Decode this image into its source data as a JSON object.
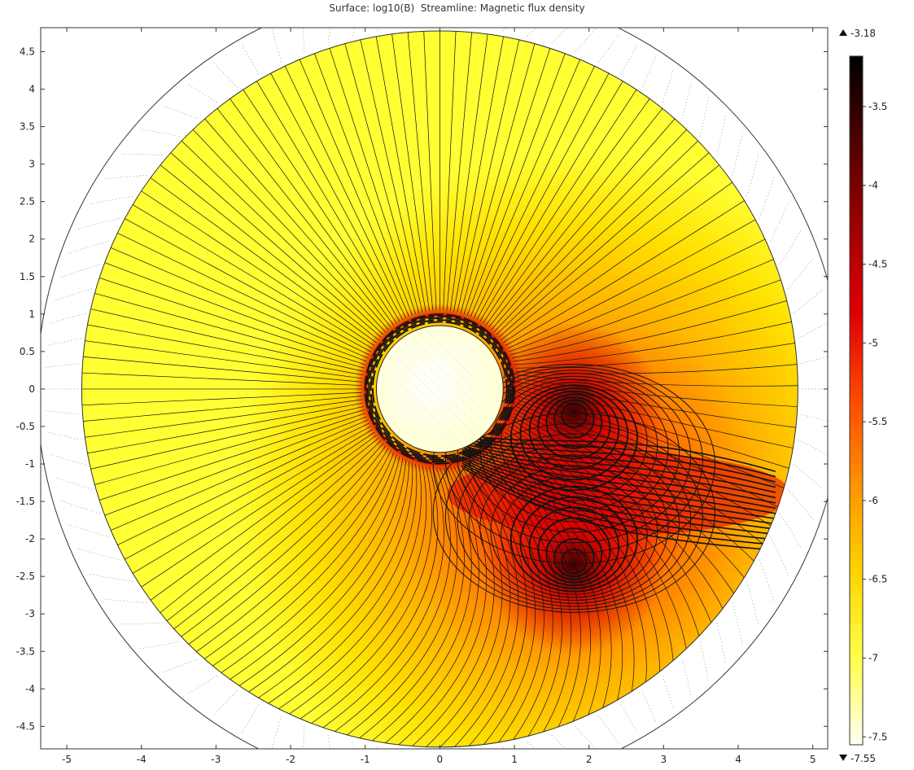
{
  "chart_data": {
    "type": "heatmap",
    "title": "Surface: log10(B)  Streamline: Magnetic flux density",
    "xlim": [
      -5.35,
      5.2
    ],
    "ylim": [
      -4.8,
      4.82
    ],
    "x_ticks": [
      -5,
      -4,
      -3,
      -2,
      -1,
      0,
      1,
      2,
      3,
      4,
      5
    ],
    "y_ticks": [
      4.5,
      4,
      3.5,
      3,
      2.5,
      2,
      1.5,
      1,
      0.5,
      0,
      -0.5,
      -1,
      -1.5,
      -2,
      -2.5,
      -3,
      -3.5,
      -4,
      -4.5
    ],
    "x_tick_labels": [
      "-5",
      "-4",
      "-3",
      "-2",
      "-1",
      "0",
      "1",
      "2",
      "3",
      "4",
      "5"
    ],
    "y_tick_labels": [
      "4.5",
      "4",
      "3.5",
      "3",
      "2.5",
      "2",
      "1.5",
      "1",
      "0.5",
      "0",
      "-0.5",
      "-1",
      "-1.5",
      "-2",
      "-2.5",
      "-3",
      "-3.5",
      "-4",
      "-4.5"
    ],
    "colorbar": {
      "max_label": "-3.18",
      "min_label": "-7.55",
      "max": -3.18,
      "min": -7.55,
      "ticks": [
        -3.5,
        -4,
        -4.5,
        -5,
        -5.5,
        -6,
        -6.5,
        -7,
        -7.5
      ],
      "tick_labels": [
        "-3.5",
        "-4",
        "-4.5",
        "-5",
        "-5.5",
        "-6",
        "-6.5",
        "-7",
        "-7.5"
      ],
      "colors": [
        "#fffff5",
        "#ffff4a",
        "#ffd400",
        "#ff9400",
        "#ff4a00",
        "#e00000",
        "#a00000",
        "#500000",
        "#000000"
      ]
    },
    "domains": {
      "outer_circle_radius": 5.4,
      "field_circle_radius": 4.8,
      "conductor_center": [
        0,
        0
      ],
      "conductor_radius": 1.0,
      "inner_hole_radius": 0.85,
      "sources": [
        [
          1.8,
          -0.3
        ],
        [
          1.8,
          -2.35
        ]
      ]
    },
    "grid": false,
    "legend": "colorbar-right"
  }
}
